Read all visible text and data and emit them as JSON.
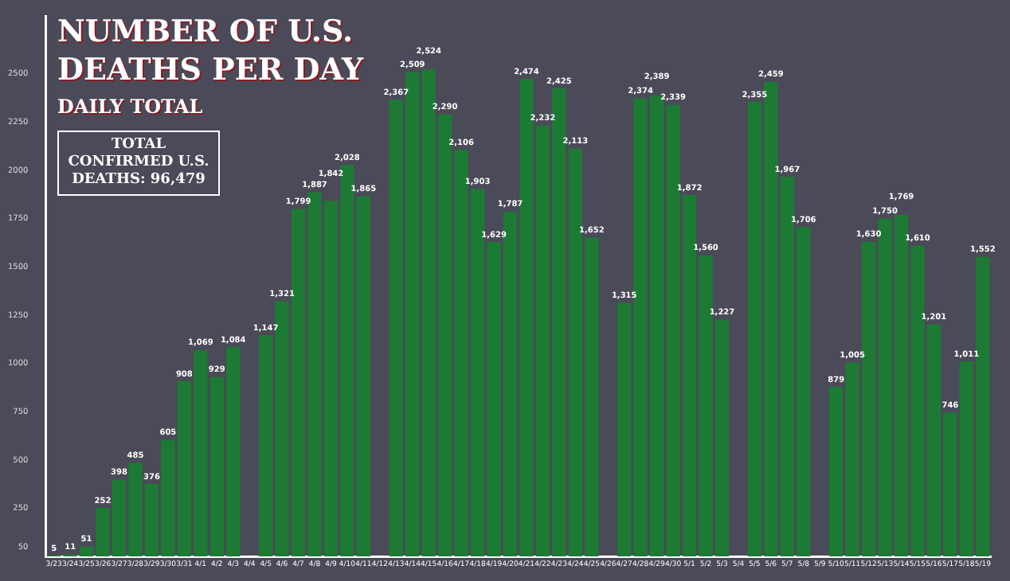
{
  "chart_data": {
    "type": "bar",
    "title": "NUMBER OF U.S. DEATHS PER DAY",
    "subtitle": "DAILY TOTAL",
    "annotations": [
      "TOTAL CONFIRMED U.S. DEATHS: 96,479"
    ],
    "categories": [
      "3/23",
      "3/24",
      "3/25",
      "3/26",
      "3/27",
      "3/28",
      "3/29",
      "3/30",
      "3/31",
      "4/1",
      "4/2",
      "4/3",
      "4/4",
      "4/5",
      "4/6",
      "4/7",
      "4/8",
      "4/9",
      "4/10",
      "4/11",
      "4/12",
      "4/13",
      "4/14",
      "4/15",
      "4/16",
      "4/17",
      "4/18",
      "4/19",
      "4/20",
      "4/21",
      "4/22",
      "4/23",
      "4/24",
      "4/25",
      "4/26",
      "4/27",
      "4/28",
      "4/29",
      "4/30",
      "5/1",
      "5/2",
      "5/3",
      "5/4",
      "5/5",
      "5/6",
      "5/7",
      "5/8",
      "5/9",
      "5/10",
      "5/11",
      "5/12",
      "5/13",
      "5/14",
      "5/15",
      "5/16",
      "5/17",
      "5/18",
      "5/19"
    ],
    "values": [
      5,
      11,
      51,
      252,
      398,
      485,
      376,
      605,
      908,
      1069,
      929,
      1084,
      null,
      1147,
      1321,
      1799,
      1887,
      1842,
      2028,
      1865,
      null,
      2367,
      2509,
      2524,
      2290,
      2106,
      1903,
      1629,
      1787,
      2474,
      2232,
      2425,
      2113,
      1652,
      null,
      1315,
      2374,
      2389,
      2339,
      1872,
      1560,
      1227,
      null,
      2355,
      2459,
      1967,
      1706,
      null,
      879,
      1005,
      1630,
      1750,
      1769,
      1610,
      1201,
      746,
      1011,
      1552
    ],
    "value_labels": [
      "5",
      "11",
      "51",
      "252",
      "398",
      "485",
      "376",
      "605",
      "908",
      "1,069",
      "929",
      "1,084",
      null,
      "1,147",
      "1,321",
      "1,799",
      "1,887",
      "1,842",
      "2,028",
      "1,865",
      null,
      "2,367",
      "2,509",
      "2,524",
      "2,290",
      "2,106",
      "1,903",
      "1,629",
      "1,787",
      "2,474",
      "2,232",
      "2,425",
      "2,113",
      "1,652",
      null,
      "1,315",
      "2,374",
      "2,389",
      "2,339",
      "1,872",
      "1,560",
      "1,227",
      null,
      "2,355",
      "2,459",
      "1,967",
      "1,706",
      null,
      "879",
      "1,005",
      "1,630",
      "1,750",
      "1,769",
      "1,610",
      "1,201",
      "746",
      "1,011",
      "1,552"
    ],
    "color": "#1c7a34",
    "ylim": [
      0,
      2800
    ],
    "yticks": [
      50,
      250,
      500,
      750,
      1000,
      1250,
      1500,
      1750,
      2000,
      2250,
      2500
    ],
    "grid": false,
    "legend": false
  }
}
